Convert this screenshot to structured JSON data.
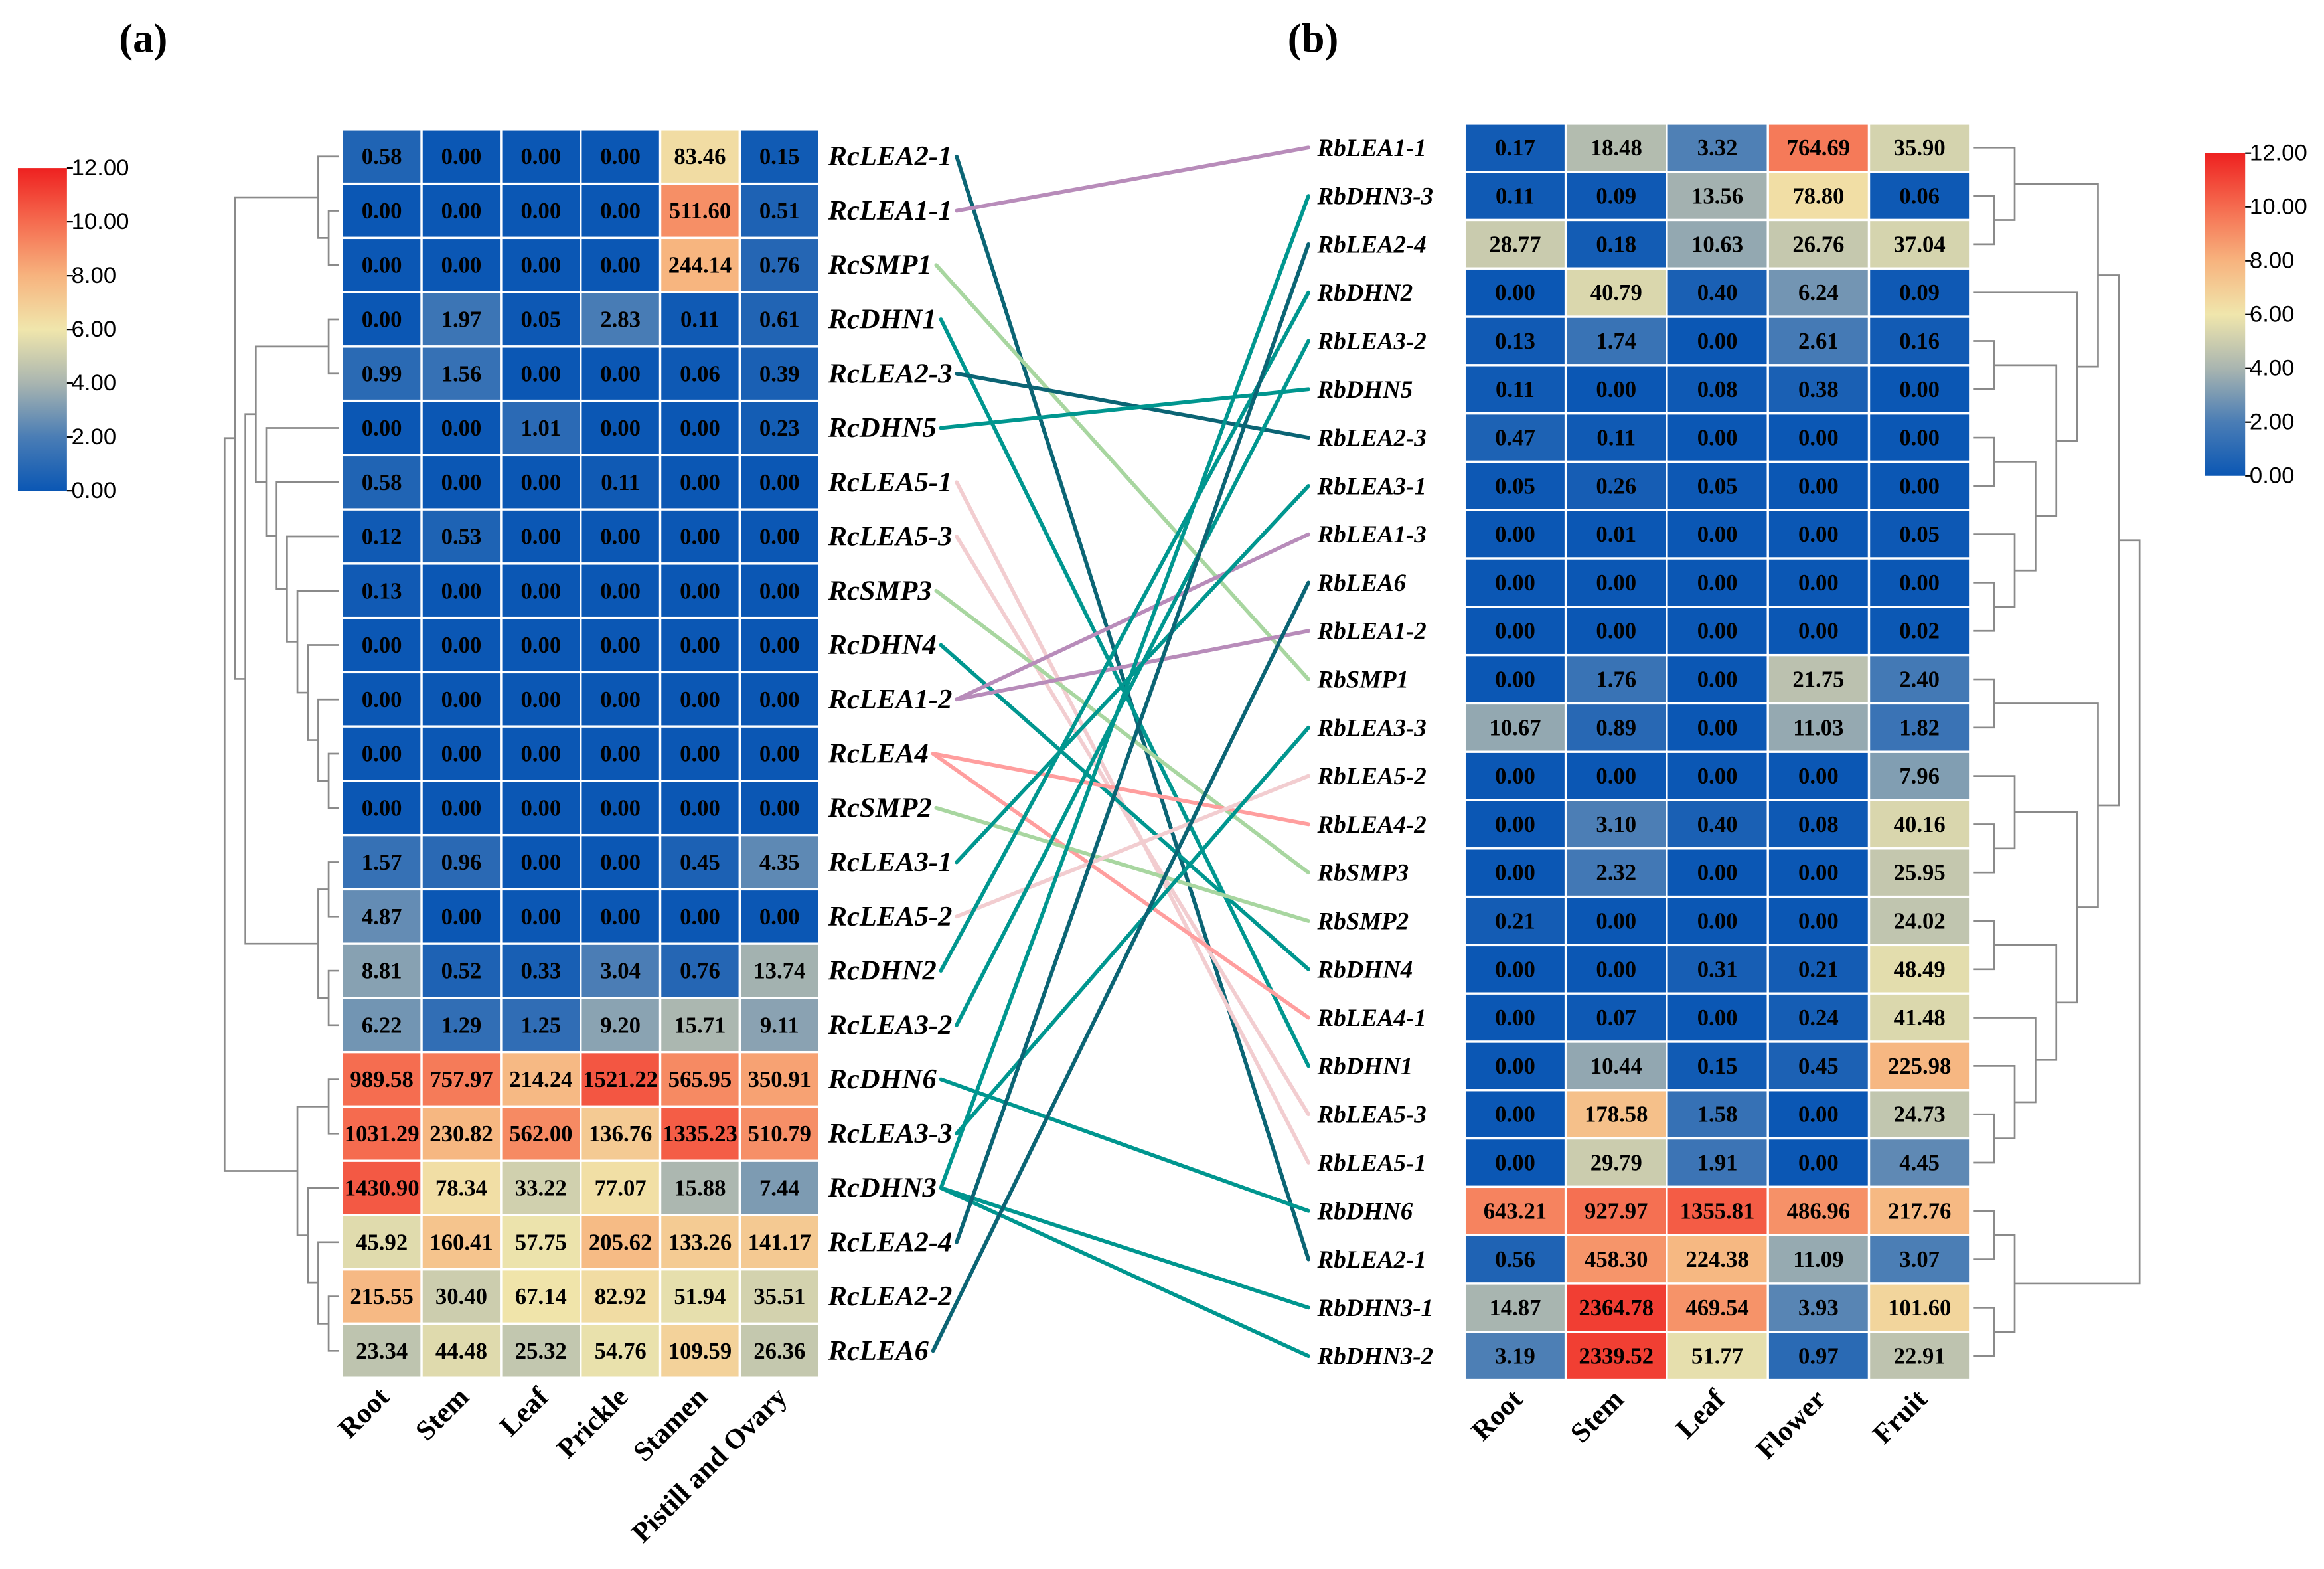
{
  "panels": {
    "a": "(a)",
    "b": "(b)"
  },
  "legend": {
    "ticks": [
      "12.00",
      "10.00",
      "8.00",
      "6.00",
      "4.00",
      "2.00",
      "0.00"
    ],
    "min": 0,
    "max": 12,
    "colors": [
      "#0b57b4",
      "#4a7db5",
      "#a9b5b0",
      "#f0e6ac",
      "#f7b37e",
      "#f56b4f",
      "#ee2120"
    ]
  },
  "chart_data": [
    {
      "type": "heatmap",
      "title": "(a)",
      "columns": [
        "Root",
        "Stem",
        "Leaf",
        "Prickle",
        "Stamen",
        "Pistill and Ovary"
      ],
      "rows": [
        "RcLEA2-1",
        "RcLEA1-1",
        "RcSMP1",
        "RcDHN1",
        "RcLEA2-3",
        "RcDHN5",
        "RcLEA5-1",
        "RcLEA5-3",
        "RcSMP3",
        "RcDHN4",
        "RcLEA1-2",
        "RcLEA4",
        "RcSMP2",
        "RcLEA3-1",
        "RcLEA5-2",
        "RcDHN2",
        "RcLEA3-2",
        "RcDHN6",
        "RcLEA3-3",
        "RcDHN3",
        "RcLEA2-4",
        "RcLEA2-2",
        "RcLEA6"
      ],
      "values": [
        [
          "0.58",
          "0.00",
          "0.00",
          "0.00",
          "83.46",
          "0.15"
        ],
        [
          "0.00",
          "0.00",
          "0.00",
          "0.00",
          "511.60",
          "0.51"
        ],
        [
          "0.00",
          "0.00",
          "0.00",
          "0.00",
          "244.14",
          "0.76"
        ],
        [
          "0.00",
          "1.97",
          "0.05",
          "2.83",
          "0.11",
          "0.61"
        ],
        [
          "0.99",
          "1.56",
          "0.00",
          "0.00",
          "0.06",
          "0.39"
        ],
        [
          "0.00",
          "0.00",
          "1.01",
          "0.00",
          "0.00",
          "0.23"
        ],
        [
          "0.58",
          "0.00",
          "0.00",
          "0.11",
          "0.00",
          "0.00"
        ],
        [
          "0.12",
          "0.53",
          "0.00",
          "0.00",
          "0.00",
          "0.00"
        ],
        [
          "0.13",
          "0.00",
          "0.00",
          "0.00",
          "0.00",
          "0.00"
        ],
        [
          "0.00",
          "0.00",
          "0.00",
          "0.00",
          "0.00",
          "0.00"
        ],
        [
          "0.00",
          "0.00",
          "0.00",
          "0.00",
          "0.00",
          "0.00"
        ],
        [
          "0.00",
          "0.00",
          "0.00",
          "0.00",
          "0.00",
          "0.00"
        ],
        [
          "0.00",
          "0.00",
          "0.00",
          "0.00",
          "0.00",
          "0.00"
        ],
        [
          "1.57",
          "0.96",
          "0.00",
          "0.00",
          "0.45",
          "4.35"
        ],
        [
          "4.87",
          "0.00",
          "0.00",
          "0.00",
          "0.00",
          "0.00"
        ],
        [
          "8.81",
          "0.52",
          "0.33",
          "3.04",
          "0.76",
          "13.74"
        ],
        [
          "6.22",
          "1.29",
          "1.25",
          "9.20",
          "15.71",
          "9.11"
        ],
        [
          "989.58",
          "757.97",
          "214.24",
          "1521.22",
          "565.95",
          "350.91"
        ],
        [
          "1031.29",
          "230.82",
          "562.00",
          "136.76",
          "1335.23",
          "510.79"
        ],
        [
          "1430.90",
          "78.34",
          "33.22",
          "77.07",
          "15.88",
          "7.44"
        ],
        [
          "45.92",
          "160.41",
          "57.75",
          "205.62",
          "133.26",
          "141.17"
        ],
        [
          "215.55",
          "30.40",
          "67.14",
          "82.92",
          "51.94",
          "35.51"
        ],
        [
          "23.34",
          "44.48",
          "25.32",
          "54.76",
          "109.59",
          "26.36"
        ]
      ],
      "color_scale": "log2(value+1), 0-12"
    },
    {
      "type": "heatmap",
      "title": "(b)",
      "columns": [
        "Root",
        "Stem",
        "Leaf",
        "Flower",
        "Fruit"
      ],
      "rows": [
        "RbLEA1-1",
        "RbDHN3-3",
        "RbLEA2-4",
        "RbDHN2",
        "RbLEA3-2",
        "RbDHN5",
        "RbLEA2-3",
        "RbLEA3-1",
        "RbLEA1-3",
        "RbLEA6",
        "RbLEA1-2",
        "RbSMP1",
        "RbLEA3-3",
        "RbLEA5-2",
        "RbLEA4-2",
        "RbSMP3",
        "RbSMP2",
        "RbDHN4",
        "RbLEA4-1",
        "RbDHN1",
        "RbLEA5-3",
        "RbLEA5-1",
        "RbDHN6",
        "RbLEA2-1",
        "RbDHN3-1",
        "RbDHN3-2"
      ],
      "values": [
        [
          "0.17",
          "18.48",
          "3.32",
          "764.69",
          "35.90"
        ],
        [
          "0.11",
          "0.09",
          "13.56",
          "78.80",
          "0.06"
        ],
        [
          "28.77",
          "0.18",
          "10.63",
          "26.76",
          "37.04"
        ],
        [
          "0.00",
          "40.79",
          "0.40",
          "6.24",
          "0.09"
        ],
        [
          "0.13",
          "1.74",
          "0.00",
          "2.61",
          "0.16"
        ],
        [
          "0.11",
          "0.00",
          "0.08",
          "0.38",
          "0.00"
        ],
        [
          "0.47",
          "0.11",
          "0.00",
          "0.00",
          "0.00"
        ],
        [
          "0.05",
          "0.26",
          "0.05",
          "0.00",
          "0.00"
        ],
        [
          "0.00",
          "0.01",
          "0.00",
          "0.00",
          "0.05"
        ],
        [
          "0.00",
          "0.00",
          "0.00",
          "0.00",
          "0.00"
        ],
        [
          "0.00",
          "0.00",
          "0.00",
          "0.00",
          "0.02"
        ],
        [
          "0.00",
          "1.76",
          "0.00",
          "21.75",
          "2.40"
        ],
        [
          "10.67",
          "0.89",
          "0.00",
          "11.03",
          "1.82"
        ],
        [
          "0.00",
          "0.00",
          "0.00",
          "0.00",
          "7.96"
        ],
        [
          "0.00",
          "3.10",
          "0.40",
          "0.08",
          "40.16"
        ],
        [
          "0.00",
          "2.32",
          "0.00",
          "0.00",
          "25.95"
        ],
        [
          "0.21",
          "0.00",
          "0.00",
          "0.00",
          "24.02"
        ],
        [
          "0.00",
          "0.00",
          "0.31",
          "0.21",
          "48.49"
        ],
        [
          "0.00",
          "0.07",
          "0.00",
          "0.24",
          "41.48"
        ],
        [
          "0.00",
          "10.44",
          "0.15",
          "0.45",
          "225.98"
        ],
        [
          "0.00",
          "178.58",
          "1.58",
          "0.00",
          "24.73"
        ],
        [
          "0.00",
          "29.79",
          "1.91",
          "0.00",
          "4.45"
        ],
        [
          "643.21",
          "927.97",
          "1355.81",
          "486.96",
          "217.76"
        ],
        [
          "0.56",
          "458.30",
          "224.38",
          "11.09",
          "3.07"
        ],
        [
          "14.87",
          "2364.78",
          "469.54",
          "3.93",
          "101.60"
        ],
        [
          "3.19",
          "2339.52",
          "51.77",
          "0.97",
          "22.91"
        ]
      ],
      "color_scale": "log2(value+1), 0-12"
    }
  ],
  "connections": [
    {
      "from": "RcLEA2-1",
      "to": "RbLEA2-1",
      "color": "#0b6474"
    },
    {
      "from": "RcLEA1-1",
      "to": "RbLEA1-1",
      "color": "#b88cba"
    },
    {
      "from": "RcSMP1",
      "to": "RbSMP1",
      "color": "#a8d6a0"
    },
    {
      "from": "RcDHN1",
      "to": "RbDHN1",
      "color": "#00968f"
    },
    {
      "from": "RcLEA2-3",
      "to": "RbLEA2-3",
      "color": "#0b6474"
    },
    {
      "from": "RcDHN5",
      "to": "RbDHN5",
      "color": "#00968f"
    },
    {
      "from": "RcLEA5-1",
      "to": "RbLEA5-1",
      "color": "#f2cdd0"
    },
    {
      "from": "RcLEA5-3",
      "to": "RbLEA5-3",
      "color": "#f2cdd0"
    },
    {
      "from": "RcSMP3",
      "to": "RbSMP3",
      "color": "#a8d6a0"
    },
    {
      "from": "RcDHN4",
      "to": "RbDHN4",
      "color": "#00968f"
    },
    {
      "from": "RcLEA1-2",
      "to": "RbLEA1-3",
      "color": "#b88cba"
    },
    {
      "from": "RcLEA1-2",
      "to": "RbLEA1-2",
      "color": "#b88cba"
    },
    {
      "from": "RcLEA4",
      "to": "RbLEA4-2",
      "color": "#ff9e9e"
    },
    {
      "from": "RcLEA4",
      "to": "RbLEA4-1",
      "color": "#ff9e9e"
    },
    {
      "from": "RcSMP2",
      "to": "RbSMP2",
      "color": "#a8d6a0"
    },
    {
      "from": "RcLEA3-1",
      "to": "RbLEA3-1",
      "color": "#00968f"
    },
    {
      "from": "RcLEA5-2",
      "to": "RbLEA5-2",
      "color": "#f2cdd0"
    },
    {
      "from": "RcDHN2",
      "to": "RbDHN2",
      "color": "#00968f"
    },
    {
      "from": "RcLEA3-2",
      "to": "RbLEA3-2",
      "color": "#00968f"
    },
    {
      "from": "RcDHN6",
      "to": "RbDHN6",
      "color": "#00968f"
    },
    {
      "from": "RcLEA3-3",
      "to": "RbLEA3-3",
      "color": "#00968f"
    },
    {
      "from": "RcDHN3",
      "to": "RbDHN3-3",
      "color": "#00968f"
    },
    {
      "from": "RcDHN3",
      "to": "RbDHN3-1",
      "color": "#00968f"
    },
    {
      "from": "RcDHN3",
      "to": "RbDHN3-2",
      "color": "#00968f"
    },
    {
      "from": "RcLEA2-4",
      "to": "RbLEA2-4",
      "color": "#0b6474"
    },
    {
      "from": "RcLEA6",
      "to": "RbLEA6",
      "color": "#0b6474"
    }
  ]
}
